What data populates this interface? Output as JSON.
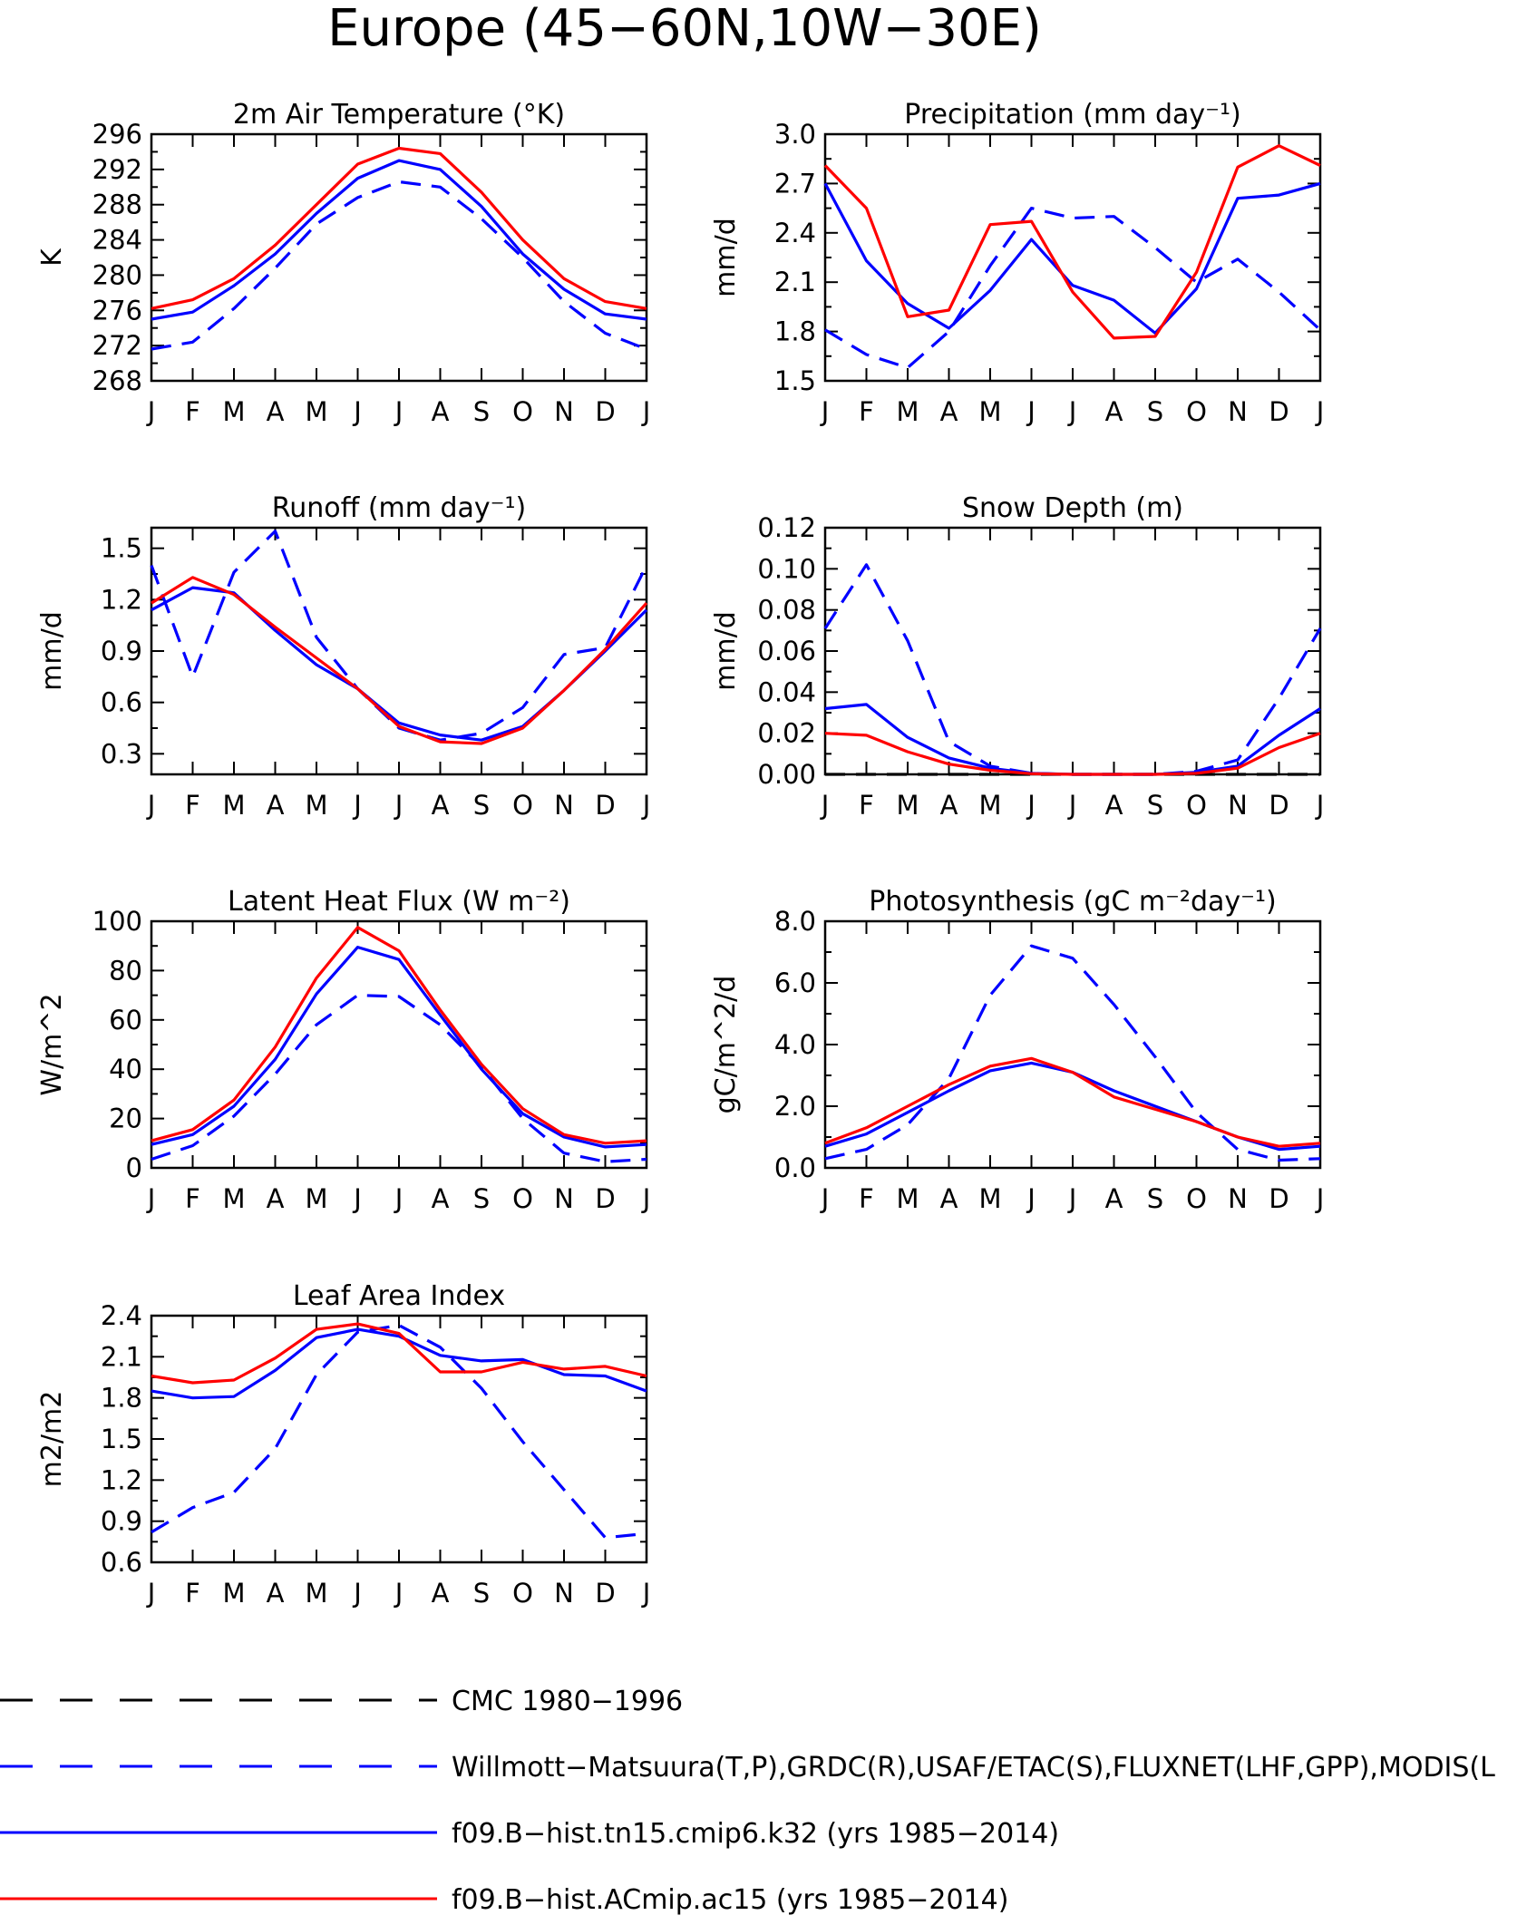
{
  "title": "Europe (45−60N,10W−30E)",
  "months": [
    "J",
    "F",
    "M",
    "A",
    "M",
    "J",
    "J",
    "A",
    "S",
    "O",
    "N",
    "D",
    "J"
  ],
  "colors": {
    "obs": "#0000ff",
    "cmc": "#000000",
    "model_blue": "#0000ff",
    "model_red": "#ff0000"
  },
  "legend": [
    {
      "label": "CMC 1980−1996",
      "color": "#000000",
      "style": "dashed"
    },
    {
      "label": "Willmott−Matsuura(T,P),GRDC(R),USAF/ETAC(S),FLUXNET(LHF,GPP),MODIS(L",
      "color": "#0000ff",
      "style": "dashed"
    },
    {
      "label": "f09.B−hist.tn15.cmip6.k32 (yrs 1985−2014)",
      "color": "#0000ff",
      "style": "solid"
    },
    {
      "label": "f09.B−hist.ACmip.ac15 (yrs 1985−2014)",
      "color": "#ff0000",
      "style": "solid"
    }
  ],
  "chart_data": [
    {
      "type": "line",
      "title": "2m Air Temperature (°K)",
      "ylabel": "K",
      "ylim": [
        268,
        296
      ],
      "yticks": [
        "268",
        "272",
        "276",
        "280",
        "284",
        "288",
        "292",
        "296"
      ],
      "series": [
        {
          "name": "Willmott−Matsuura(T,P),GRDC(R),USAF/ETAC(S),FLUXNET(LHF,GPP),MODIS(L",
          "color": "#0000ff",
          "dash": true,
          "values": [
            271.6,
            272.4,
            276.2,
            280.8,
            285.8,
            288.8,
            290.6,
            290.0,
            286.4,
            282.0,
            277.0,
            273.4,
            271.6
          ]
        },
        {
          "name": "f09.B−hist.tn15.cmip6.k32 (yrs 1985−2014)",
          "color": "#0000ff",
          "dash": false,
          "values": [
            275.0,
            275.8,
            278.8,
            282.4,
            287.0,
            291.0,
            293.0,
            292.0,
            287.8,
            282.4,
            278.4,
            275.6,
            275.0
          ]
        },
        {
          "name": "f09.B−hist.ACmip.ac15 (yrs 1985−2014)",
          "color": "#ff0000",
          "dash": false,
          "values": [
            276.2,
            277.2,
            279.6,
            283.4,
            288.0,
            292.6,
            294.4,
            293.8,
            289.4,
            284.0,
            279.6,
            277.0,
            276.2
          ]
        }
      ]
    },
    {
      "type": "line",
      "title": "Precipitation (mm day⁻¹)",
      "ylabel": "mm/d",
      "ylim": [
        1.5,
        3.0
      ],
      "yticks": [
        "1.5",
        "1.8",
        "2.1",
        "2.4",
        "2.7",
        "3.0"
      ],
      "series": [
        {
          "name": "Willmott−Matsuura(T,P),GRDC(R),USAF/ETAC(S),FLUXNET(LHF,GPP),MODIS(L",
          "color": "#0000ff",
          "dash": true,
          "values": [
            1.81,
            1.66,
            1.58,
            1.8,
            2.2,
            2.55,
            2.49,
            2.5,
            2.31,
            2.1,
            2.24,
            2.04,
            1.81
          ]
        },
        {
          "name": "f09.B−hist.tn15.cmip6.k32 (yrs 1985−2014)",
          "color": "#0000ff",
          "dash": false,
          "values": [
            2.7,
            2.23,
            1.97,
            1.82,
            2.05,
            2.36,
            2.08,
            1.99,
            1.79,
            2.06,
            2.61,
            2.63,
            2.7
          ]
        },
        {
          "name": "f09.B−hist.ACmip.ac15 (yrs 1985−2014)",
          "color": "#ff0000",
          "dash": false,
          "values": [
            2.81,
            2.55,
            1.89,
            1.93,
            2.45,
            2.47,
            2.04,
            1.76,
            1.77,
            2.16,
            2.8,
            2.93,
            2.81
          ]
        }
      ]
    },
    {
      "type": "line",
      "title": "Runoff (mm day⁻¹)",
      "ylabel": "mm/d",
      "ylim": [
        0.18,
        1.62
      ],
      "yticks": [
        "0.3",
        "0.6",
        "0.9",
        "1.2",
        "1.5"
      ],
      "series": [
        {
          "name": "Willmott−Matsuura(T,P),GRDC(R),USAF/ETAC(S),FLUXNET(LHF,GPP),MODIS(L",
          "color": "#0000ff",
          "dash": true,
          "values": [
            1.4,
            0.75,
            1.36,
            1.6,
            0.98,
            0.68,
            0.45,
            0.38,
            0.42,
            0.57,
            0.88,
            0.92,
            1.4
          ]
        },
        {
          "name": "f09.B−hist.tn15.cmip6.k32 (yrs 1985−2014)",
          "color": "#0000ff",
          "dash": false,
          "values": [
            1.14,
            1.27,
            1.24,
            1.02,
            0.82,
            0.68,
            0.48,
            0.41,
            0.38,
            0.46,
            0.67,
            0.9,
            1.14
          ]
        },
        {
          "name": "f09.B−hist.ACmip.ac15 (yrs 1985−2014)",
          "color": "#ff0000",
          "dash": false,
          "values": [
            1.18,
            1.33,
            1.23,
            1.04,
            0.86,
            0.68,
            0.46,
            0.37,
            0.36,
            0.45,
            0.67,
            0.91,
            1.18
          ]
        }
      ]
    },
    {
      "type": "line",
      "title": "Snow Depth (m)",
      "ylabel": "mm/d",
      "ylim": [
        0,
        0.12
      ],
      "yticks": [
        "0.00",
        "0.02",
        "0.04",
        "0.06",
        "0.08",
        "0.10",
        "0.12"
      ],
      "series": [
        {
          "name": "CMC 1980−1996",
          "color": "#000000",
          "dash": true,
          "values": [
            0,
            0,
            0,
            0,
            0,
            0,
            0,
            0,
            0,
            0,
            0,
            0,
            0
          ]
        },
        {
          "name": "Willmott−Matsuura(T,P),GRDC(R),USAF/ETAC(S),FLUXNET(LHF,GPP),MODIS(L",
          "color": "#0000ff",
          "dash": true,
          "values": [
            0.071,
            0.102,
            0.065,
            0.016,
            0.004,
            0.0005,
            0,
            0,
            0,
            0.0015,
            0.007,
            0.037,
            0.071
          ]
        },
        {
          "name": "f09.B−hist.tn15.cmip6.k32 (yrs 1985−2014)",
          "color": "#0000ff",
          "dash": false,
          "values": [
            0.032,
            0.034,
            0.018,
            0.008,
            0.003,
            0.0005,
            0,
            0,
            0,
            0.001,
            0.004,
            0.019,
            0.032
          ]
        },
        {
          "name": "f09.B−hist.ACmip.ac15 (yrs 1985−2014)",
          "color": "#ff0000",
          "dash": false,
          "values": [
            0.02,
            0.019,
            0.011,
            0.005,
            0.002,
            0.0003,
            0,
            0,
            0,
            0.0005,
            0.003,
            0.013,
            0.02
          ]
        }
      ]
    },
    {
      "type": "line",
      "title": "Latent Heat Flux (W m⁻²)",
      "ylabel": "W/m^2",
      "ylim": [
        0,
        100
      ],
      "yticks": [
        "0",
        "20",
        "40",
        "60",
        "80",
        "100"
      ],
      "series": [
        {
          "name": "Willmott−Matsuura(T,P),GRDC(R),USAF/ETAC(S),FLUXNET(LHF,GPP),MODIS(L",
          "color": "#0000ff",
          "dash": true,
          "values": [
            3.5,
            9,
            21,
            38,
            58,
            70,
            69.5,
            58,
            41,
            20,
            6,
            2.5,
            3.5
          ]
        },
        {
          "name": "f09.B−hist.tn15.cmip6.k32 (yrs 1985−2014)",
          "color": "#0000ff",
          "dash": false,
          "values": [
            9.5,
            13.5,
            25,
            44,
            70.5,
            89.5,
            84.5,
            62,
            40,
            22,
            12.5,
            8.5,
            9.5
          ]
        },
        {
          "name": "f09.B−hist.ACmip.ac15 (yrs 1985−2014)",
          "color": "#ff0000",
          "dash": false,
          "values": [
            11,
            15.5,
            27.5,
            49,
            77,
            97.5,
            88,
            64,
            42,
            24,
            13.5,
            10,
            11
          ]
        }
      ]
    },
    {
      "type": "line",
      "title": "Photosynthesis (gC m⁻²day⁻¹)",
      "ylabel": "gC/m^2/d",
      "ylim": [
        0,
        8
      ],
      "yticks": [
        "0.0",
        "2.0",
        "4.0",
        "6.0",
        "8.0"
      ],
      "series": [
        {
          "name": "Willmott−Matsuura(T,P),GRDC(R),USAF/ETAC(S),FLUXNET(LHF,GPP),MODIS(L",
          "color": "#0000ff",
          "dash": true,
          "values": [
            0.3,
            0.6,
            1.4,
            2.9,
            5.6,
            7.2,
            6.8,
            5.3,
            3.6,
            1.8,
            0.6,
            0.25,
            0.3
          ]
        },
        {
          "name": "f09.B−hist.tn15.cmip6.k32 (yrs 1985−2014)",
          "color": "#0000ff",
          "dash": false,
          "values": [
            0.7,
            1.1,
            1.8,
            2.5,
            3.15,
            3.4,
            3.1,
            2.5,
            2.0,
            1.5,
            1.0,
            0.6,
            0.7
          ]
        },
        {
          "name": "f09.B−hist.ACmip.ac15 (yrs 1985−2014)",
          "color": "#ff0000",
          "dash": false,
          "values": [
            0.8,
            1.3,
            2.0,
            2.7,
            3.3,
            3.55,
            3.1,
            2.3,
            1.9,
            1.5,
            1.0,
            0.7,
            0.8
          ]
        }
      ]
    },
    {
      "type": "line",
      "title": "Leaf Area Index",
      "ylabel": "m2/m2",
      "ylim": [
        0.6,
        2.4
      ],
      "yticks": [
        "0.6",
        "0.9",
        "1.2",
        "1.5",
        "1.8",
        "2.1",
        "2.4"
      ],
      "series": [
        {
          "name": "Willmott−Matsuura(T,P),GRDC(R),USAF/ETAC(S),FLUXNET(LHF,GPP),MODIS(L",
          "color": "#0000ff",
          "dash": true,
          "values": [
            0.82,
            1.0,
            1.11,
            1.43,
            1.97,
            2.28,
            2.33,
            2.17,
            1.87,
            1.48,
            1.13,
            0.78,
            0.81
          ]
        },
        {
          "name": "f09.B−hist.tn15.cmip6.k32 (yrs 1985−2014)",
          "color": "#0000ff",
          "dash": false,
          "values": [
            1.85,
            1.8,
            1.81,
            2.0,
            2.24,
            2.3,
            2.25,
            2.11,
            2.07,
            2.08,
            1.97,
            1.96,
            1.85
          ]
        },
        {
          "name": "f09.B−hist.ACmip.ac15 (yrs 1985−2014)",
          "color": "#ff0000",
          "dash": false,
          "values": [
            1.96,
            1.91,
            1.93,
            2.09,
            2.3,
            2.34,
            2.27,
            1.99,
            1.99,
            2.06,
            2.01,
            2.03,
            1.96
          ]
        }
      ]
    }
  ]
}
